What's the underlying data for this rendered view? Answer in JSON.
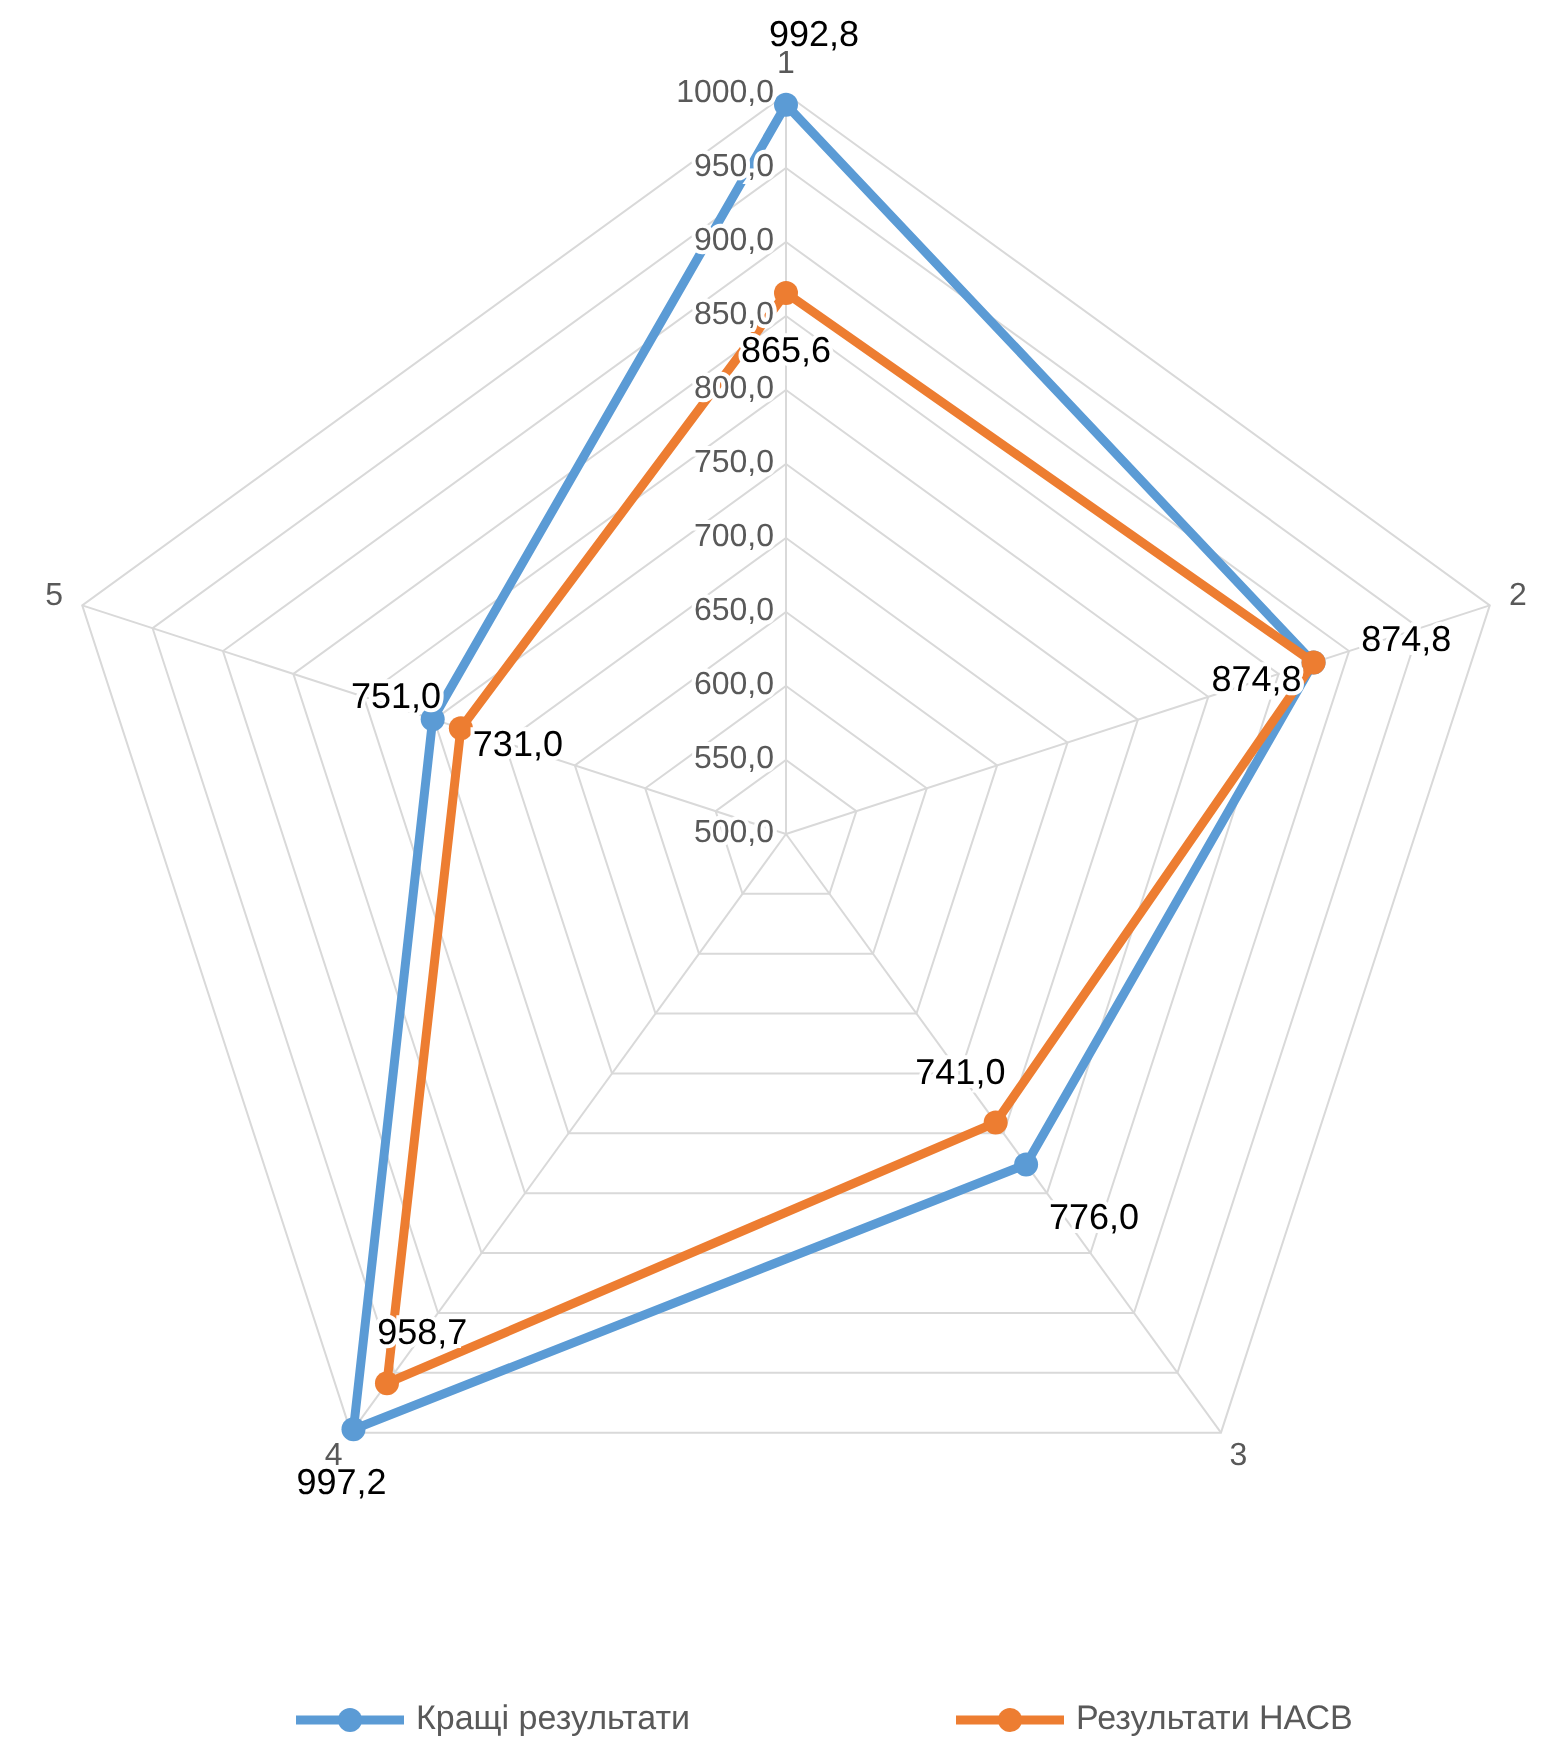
{
  "chart_data": {
    "type": "radar",
    "categories": [
      "1",
      "2",
      "3",
      "4",
      "5"
    ],
    "ylim": [
      500,
      1000
    ],
    "yticks": [
      {
        "value": 500,
        "label": "500,0"
      },
      {
        "value": 550,
        "label": "550,0"
      },
      {
        "value": 600,
        "label": "600,0"
      },
      {
        "value": 650,
        "label": "650,0"
      },
      {
        "value": 700,
        "label": "700,0"
      },
      {
        "value": 750,
        "label": "750,0"
      },
      {
        "value": 800,
        "label": "800,0"
      },
      {
        "value": 850,
        "label": "850,0"
      },
      {
        "value": 900,
        "label": "900,0"
      },
      {
        "value": 950,
        "label": "950,0"
      },
      {
        "value": 1000,
        "label": "1000,0"
      }
    ],
    "series": [
      {
        "name": "Кращі результати",
        "color": "#5b9bd5",
        "values": [
          992.8,
          874.8,
          776.0,
          997.2,
          751.0
        ],
        "value_labels": [
          "992,8",
          "874,8",
          "776,0",
          "997,2",
          "751,0"
        ]
      },
      {
        "name": "Результати НАСВ",
        "color": "#ed7d31",
        "values": [
          865.6,
          874.8,
          741.0,
          958.7,
          731.0
        ],
        "value_labels": [
          "865,6",
          "874,8",
          "741,0",
          "958,7",
          "731,0"
        ]
      }
    ],
    "grid": true,
    "marker": "circle",
    "legend": "bottom"
  }
}
